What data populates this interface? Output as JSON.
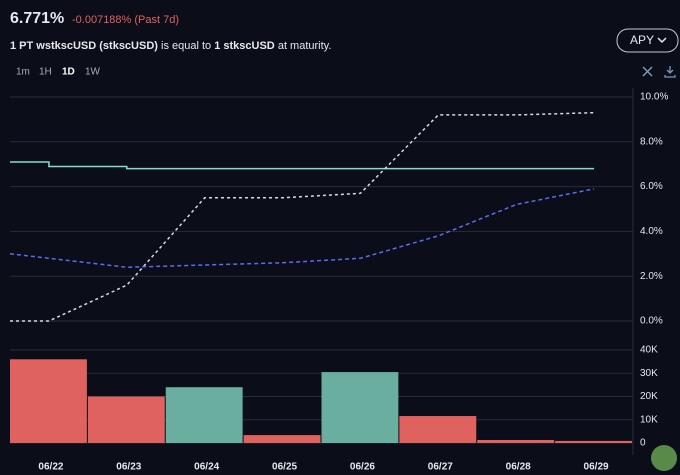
{
  "header": {
    "value": "6.771%",
    "change": "-0.007188% (Past 7d)",
    "description": [
      "1 PT wstkscUSD (stkscUSD)",
      " is equal to ",
      "1 stkscUSD",
      " at maturity."
    ],
    "selector": "APY",
    "intervals": [
      "1m",
      "1H",
      "1D",
      "1W"
    ]
  },
  "chart_data": [
    {
      "type": "line",
      "xlim": [
        -0.5,
        7.5
      ],
      "ylim": [
        0,
        10
      ],
      "yticks": [
        {
          "value": 0,
          "label": "0.0%"
        },
        {
          "value": 2,
          "label": "2.0%"
        },
        {
          "value": 4,
          "label": "4.0%"
        },
        {
          "value": 6,
          "label": "6.0%"
        },
        {
          "value": 8,
          "label": "8.0%"
        },
        {
          "value": 10,
          "label": "10.0%"
        }
      ],
      "grid": true,
      "series": [
        {
          "color": "#7fe3c6",
          "dash": "none",
          "x": [
            -0.5,
            0,
            0,
            1,
            1,
            7
          ],
          "values": [
            7.1,
            7.1,
            6.9,
            6.9,
            6.8,
            6.8
          ]
        },
        {
          "color": "#d9d9e6",
          "dash": "3,3",
          "x": [
            -0.5,
            0,
            1,
            2,
            3,
            4,
            5,
            6,
            7
          ],
          "values": [
            0.0,
            0.0,
            1.6,
            5.5,
            5.5,
            5.7,
            9.2,
            9.2,
            9.3
          ]
        },
        {
          "color": "#5c6cf2",
          "dash": "4,3",
          "x": [
            -0.5,
            0,
            1,
            2,
            3,
            4,
            5,
            6,
            7
          ],
          "values": [
            3.0,
            2.8,
            2.4,
            2.5,
            2.6,
            2.8,
            3.8,
            5.2,
            5.9
          ]
        }
      ]
    },
    {
      "type": "bar",
      "categories": [
        "06/22",
        "06/23",
        "06/24",
        "06/25",
        "06/26",
        "06/27",
        "06/28",
        "06/29"
      ],
      "values": [
        36000,
        20000,
        24000,
        3400,
        30500,
        11600,
        1300,
        900
      ],
      "colors": [
        "#e0625e",
        "#e0625e",
        "#6aae9f",
        "#e0625e",
        "#6aae9f",
        "#e0625e",
        "#e0625e",
        "#e0625e"
      ],
      "ylim": [
        0,
        40000
      ],
      "yticks": [
        0,
        {
          "value": 10000,
          "label": "10K"
        },
        {
          "value": 20000,
          "label": "20K"
        },
        {
          "value": 30000,
          "label": "30K"
        },
        {
          "value": 40000,
          "label": "40K"
        }
      ],
      "grid": true
    }
  ]
}
